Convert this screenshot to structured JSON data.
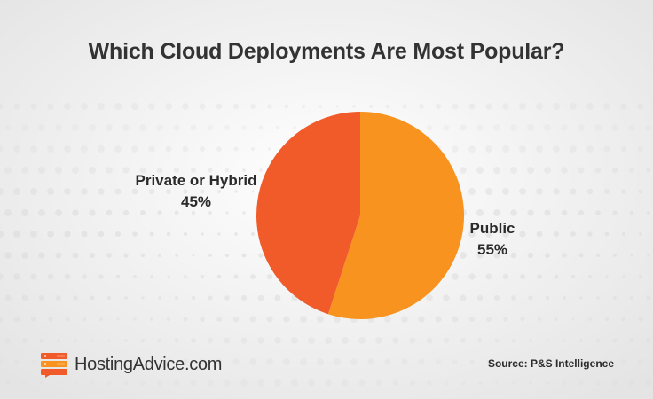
{
  "title": "Which Cloud Deployments Are Most Popular?",
  "source": "Source: P&S Intelligence",
  "logo": {
    "text": "HostingAdvice.com",
    "icon": "server-stack-icon"
  },
  "colors": {
    "public": "#F7931E",
    "private_or_hybrid": "#F15A29",
    "text": "#333333",
    "background": "#F1F1F1"
  },
  "chart_data": {
    "type": "pie",
    "title": "Which Cloud Deployments Are Most Popular?",
    "slices": [
      {
        "label": "Public",
        "value": 55,
        "value_label": "55%",
        "color": "#F7931E"
      },
      {
        "label": "Private or Hybrid",
        "value": 45,
        "value_label": "45%",
        "color": "#F15A29"
      }
    ],
    "start_angle_deg": 0,
    "direction": "clockwise",
    "legend": "none"
  }
}
